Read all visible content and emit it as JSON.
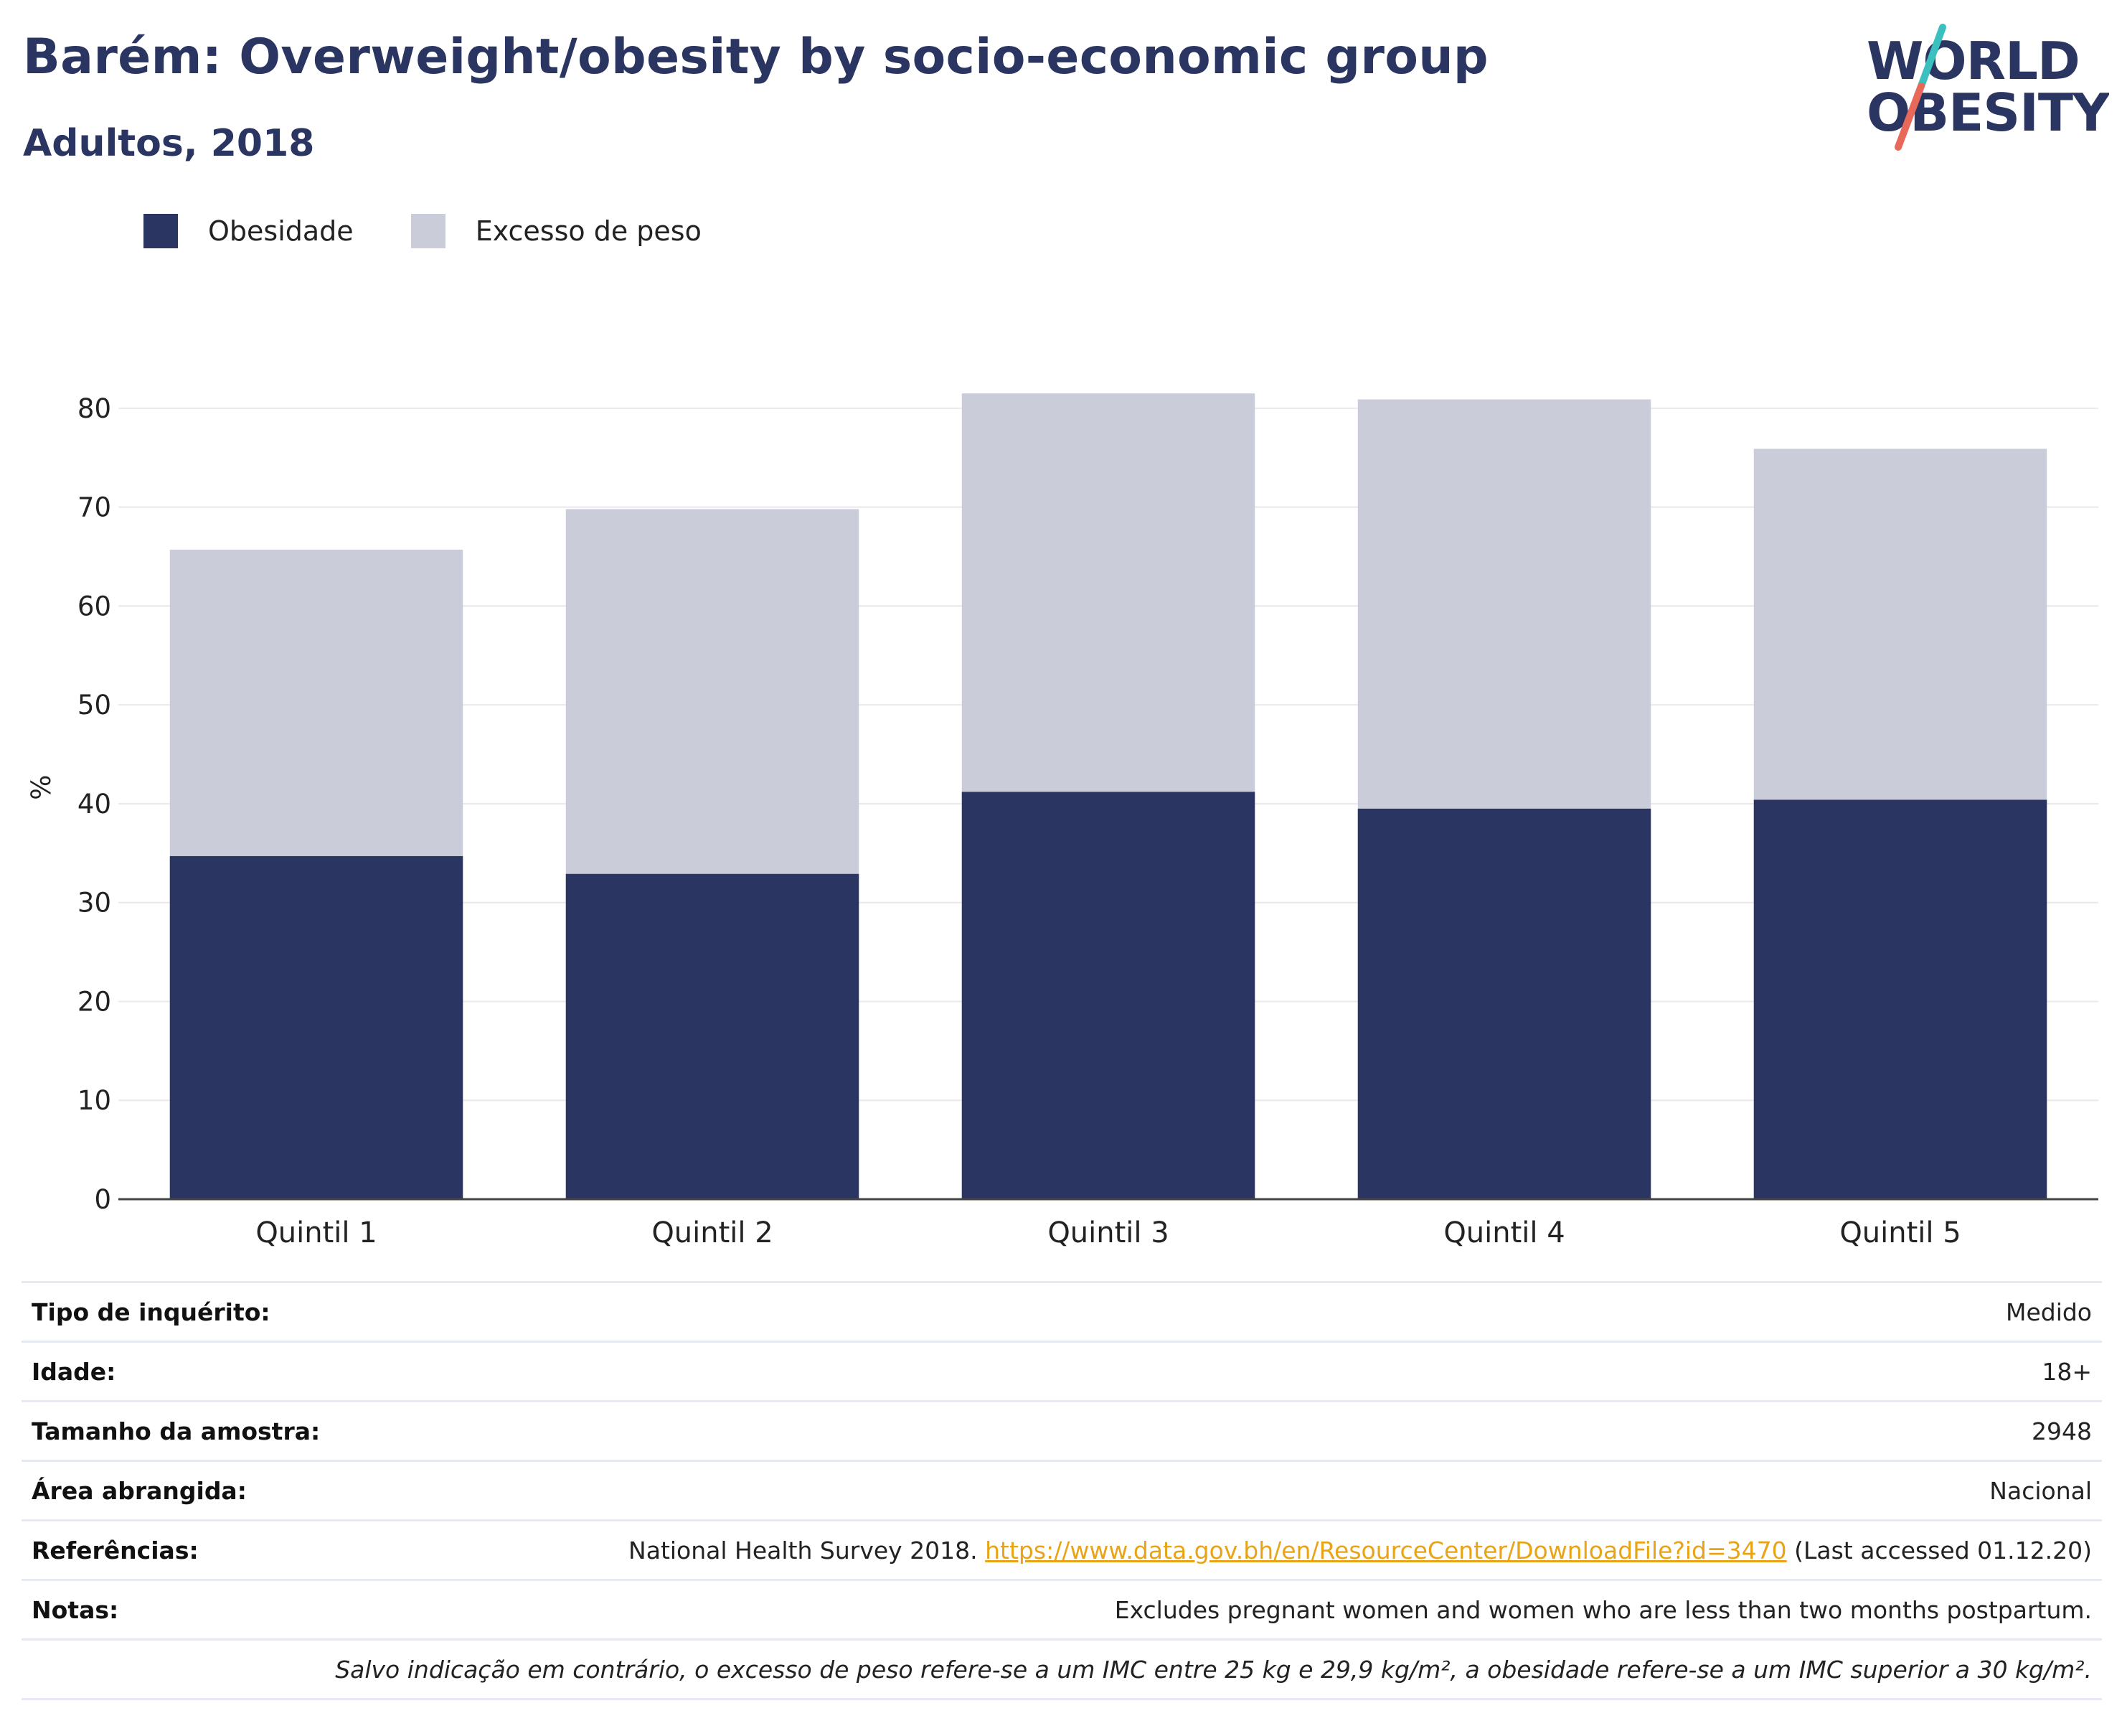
{
  "header": {
    "title": "Barém: Overweight/obesity by socio-economic group",
    "subtitle": "Adultos, 2018"
  },
  "logo": {
    "line1": "WORLD",
    "line2": "OBESITY",
    "slash_colors": [
      "#3bbfbf",
      "#e8685a"
    ]
  },
  "colors": {
    "obesity": "#2a3561",
    "overweight": "#cacdd9",
    "title": "#2a3561",
    "link": "#e8a416"
  },
  "legend": [
    {
      "label": "Obesidade",
      "color": "#2a3561"
    },
    {
      "label": "Excesso de peso",
      "color": "#cacdd9"
    }
  ],
  "chart_data": {
    "type": "bar",
    "stacked": false,
    "categories": [
      "Quintil 1",
      "Quintil 2",
      "Quintil 3",
      "Quintil 4",
      "Quintil 5"
    ],
    "series": [
      {
        "name": "Excesso de peso",
        "values": [
          65.7,
          69.8,
          81.5,
          80.9,
          75.9
        ]
      },
      {
        "name": "Obesidade",
        "values": [
          34.7,
          32.9,
          41.2,
          39.5,
          40.4
        ]
      }
    ],
    "ylabel": "%",
    "ylim": [
      0,
      85
    ],
    "yticks": [
      0,
      10,
      20,
      30,
      40,
      50,
      60,
      70,
      80
    ],
    "grid": true
  },
  "info": {
    "rows": [
      {
        "label": "Tipo de inquérito:",
        "value": "Medido"
      },
      {
        "label": "Idade:",
        "value": "18+"
      },
      {
        "label": "Tamanho da amostra:",
        "value": "2948"
      },
      {
        "label": "Área abrangida:",
        "value": "Nacional"
      }
    ],
    "references": {
      "label": "Referências:",
      "prefix": "National Health Survey 2018. ",
      "link": "https://www.data.gov.bh/en/ResourceCenter/DownloadFile?id=3470",
      "suffix": " (Last accessed 01.12.20)"
    },
    "notes": {
      "label": "Notas:",
      "value": "Excludes pregnant women and women who are less than two months postpartum."
    },
    "footnote": "Salvo indicação em contrário, o excesso de peso refere-se a um IMC entre 25 kg e 29,9 kg/m², a obesidade refere-se a um IMC superior a 30 kg/m²."
  }
}
